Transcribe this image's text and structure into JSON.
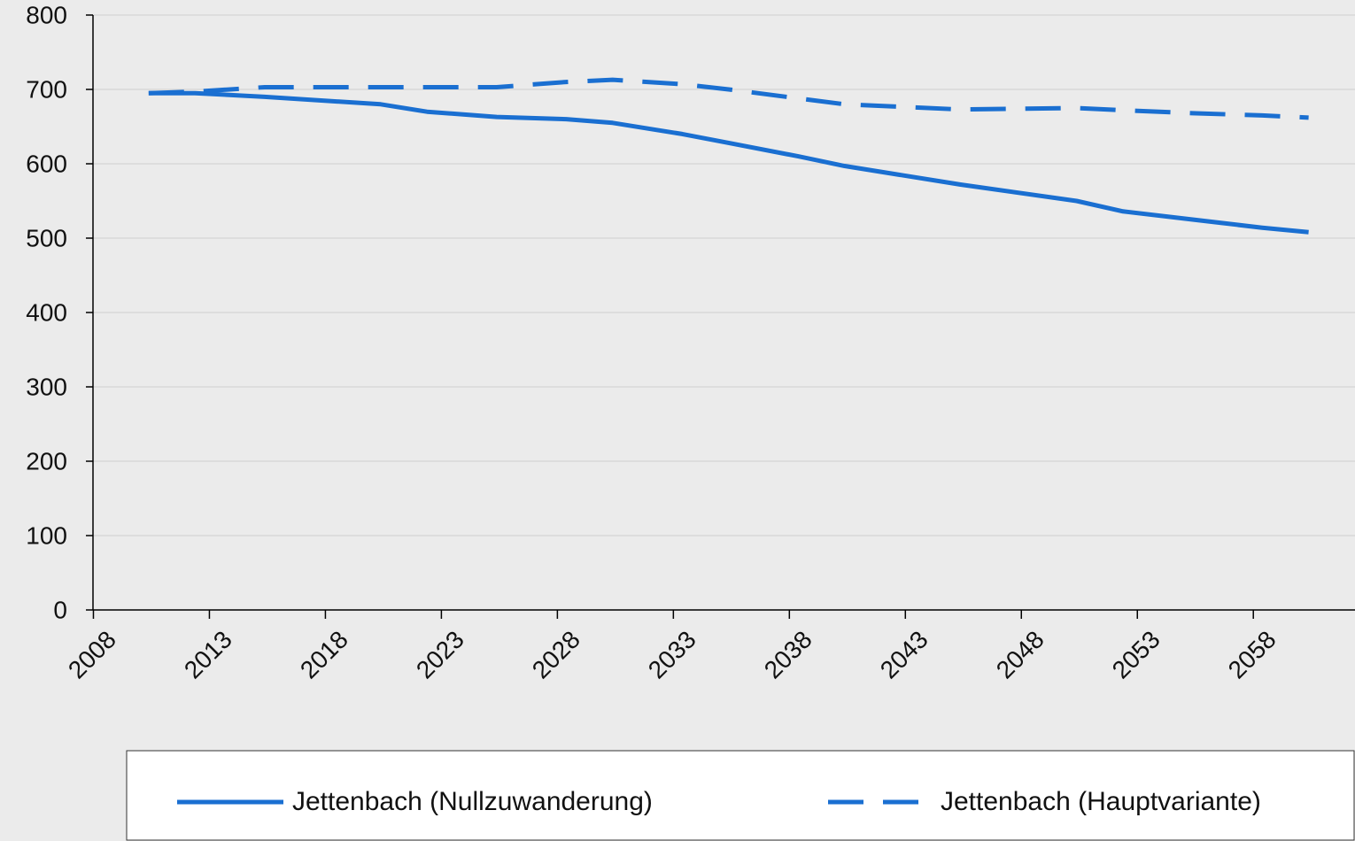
{
  "chart_data": {
    "type": "line",
    "x": [
      2010,
      2012,
      2015,
      2020,
      2022,
      2025,
      2028,
      2030,
      2033,
      2035,
      2038,
      2040,
      2045,
      2050,
      2052,
      2055,
      2058,
      2060
    ],
    "series": [
      {
        "name": "Jettenbach (Nullzuwanderung)",
        "color": "#1a6fd1",
        "dash": false,
        "values": [
          695,
          695,
          690,
          680,
          670,
          663,
          660,
          655,
          640,
          628,
          610,
          597,
          572,
          550,
          536,
          525,
          514,
          508
        ]
      },
      {
        "name": "Jettenbach (Hauptvariante)",
        "color": "#1a6fd1",
        "dash": true,
        "values": [
          695,
          697,
          703,
          703,
          703,
          703,
          710,
          713,
          707,
          700,
          688,
          680,
          673,
          675,
          672,
          668,
          665,
          662
        ]
      }
    ],
    "xlim": [
      2007.6,
      2062
    ],
    "xticks": [
      2008,
      2013,
      2018,
      2023,
      2028,
      2033,
      2038,
      2043,
      2048,
      2053,
      2058
    ],
    "ylim": [
      0,
      800
    ],
    "yticks": [
      0,
      100,
      200,
      300,
      400,
      500,
      600,
      700,
      800
    ],
    "grid": true,
    "legend": "bottom"
  }
}
